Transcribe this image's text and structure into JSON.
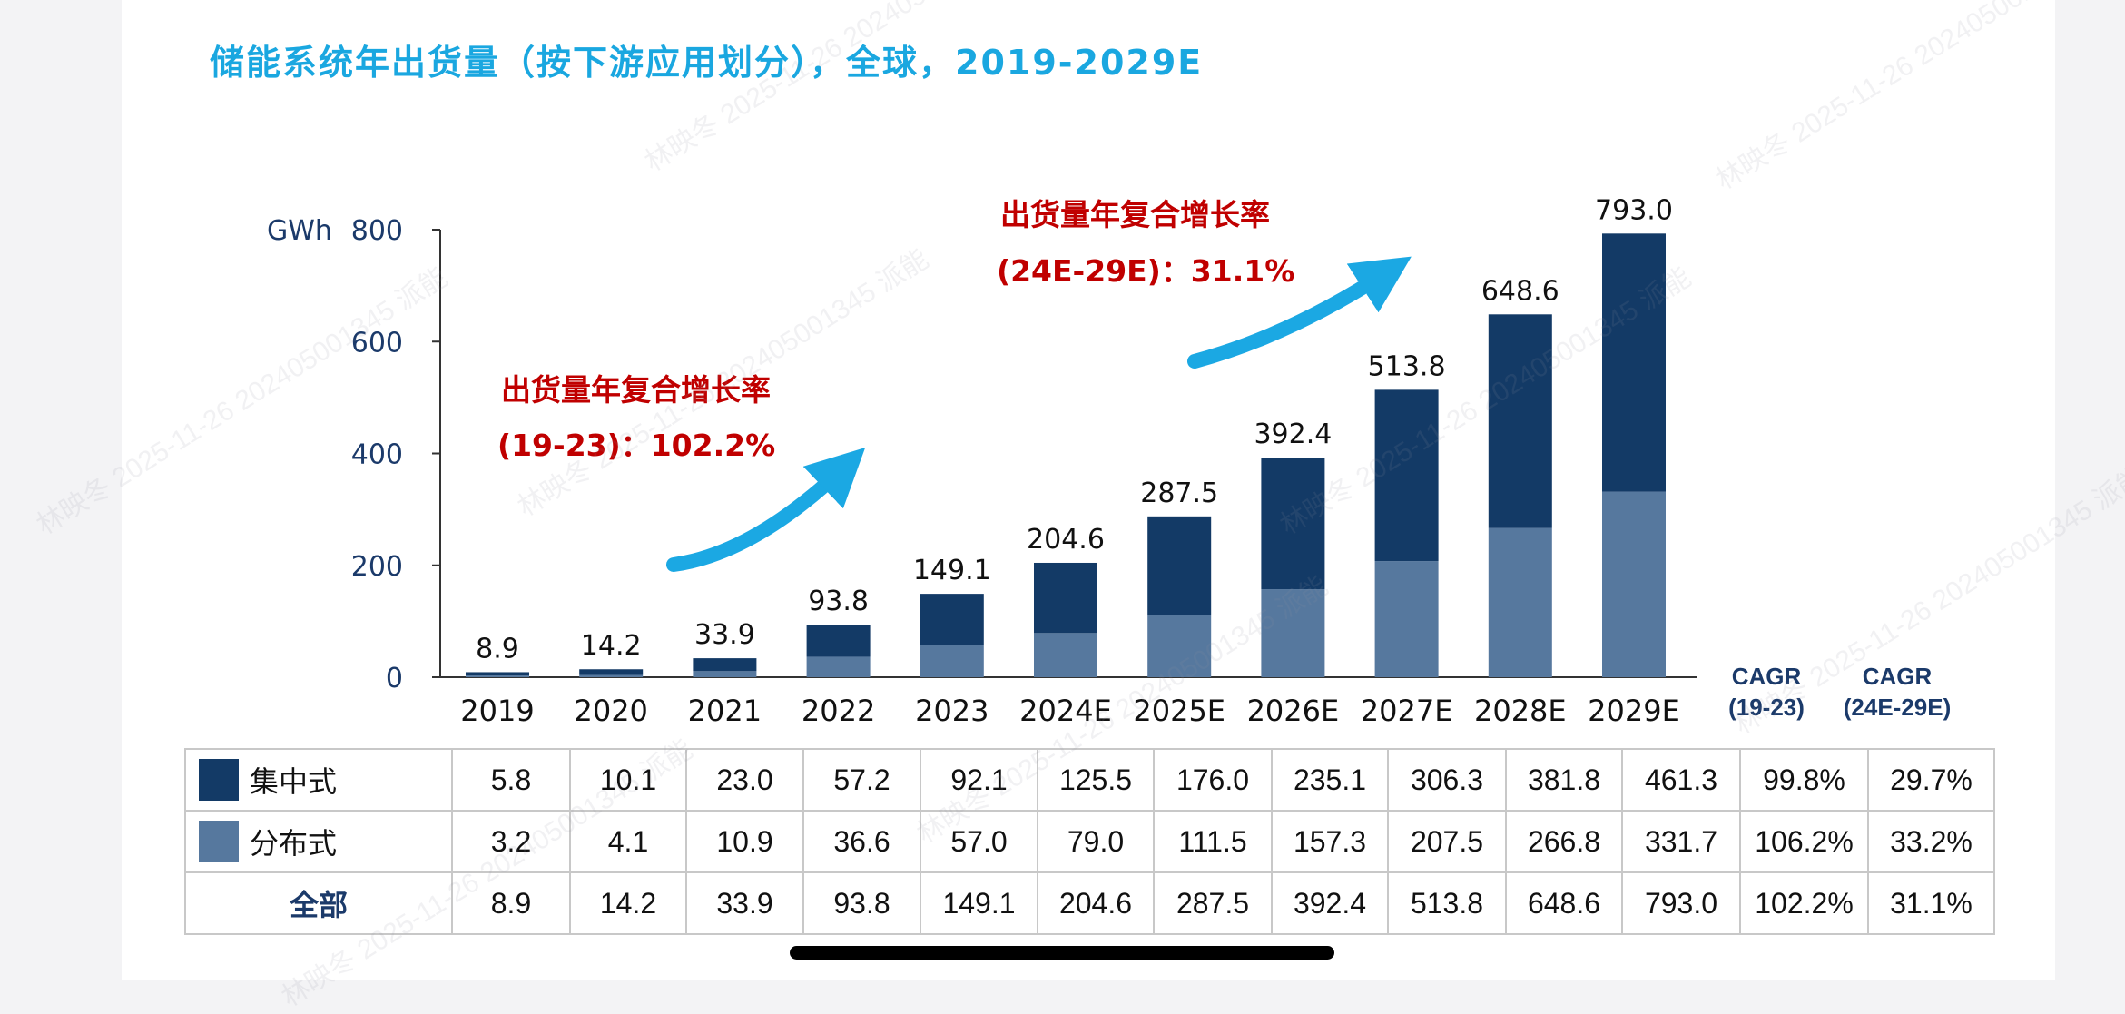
{
  "watermark": "林映冬 2025-11-26 202405001345 派能",
  "chart_data": {
    "type": "bar",
    "stacked": true,
    "title": "储能系统年出货量（按下游应用划分），全球，2019-2029E",
    "ylabel": "GWh",
    "ylim": [
      0,
      800
    ],
    "yticks": [
      0,
      200,
      400,
      600,
      800
    ],
    "grid": false,
    "categories": [
      "2019",
      "2020",
      "2021",
      "2022",
      "2023",
      "2024E",
      "2025E",
      "2026E",
      "2027E",
      "2028E",
      "2029E"
    ],
    "series": [
      {
        "name": "分布式",
        "color": "#56789e",
        "values": [
          3.2,
          4.1,
          10.9,
          36.6,
          57.0,
          79.0,
          111.5,
          157.3,
          207.5,
          266.8,
          331.7
        ],
        "cagr": [
          "106.2%",
          "33.2%"
        ]
      },
      {
        "name": "集中式",
        "color": "#133a66",
        "values": [
          5.8,
          10.1,
          23.0,
          57.2,
          92.1,
          125.5,
          176.0,
          235.1,
          306.3,
          381.8,
          461.3
        ],
        "cagr": [
          "99.8%",
          "29.7%"
        ]
      }
    ],
    "totals": {
      "name": "全部",
      "values": [
        "8.9",
        "14.2",
        "33.9",
        "93.8",
        "149.1",
        "204.6",
        "287.5",
        "392.4",
        "513.8",
        "648.6",
        "793.0"
      ],
      "cagr": [
        "102.2%",
        "31.1%"
      ]
    },
    "cagr_headers": [
      [
        "CAGR",
        "(19-23)"
      ],
      [
        "CAGR",
        "(24E-29E)"
      ]
    ],
    "annotations": [
      {
        "line1": "出货量年复合增长率",
        "line2": "(19-23)：102.2%"
      },
      {
        "line1": "出货量年复合增长率",
        "line2": "(24E-29E)：31.1%"
      }
    ],
    "accent_color": "#1aa7e0",
    "annotation_color": "#c00000"
  }
}
